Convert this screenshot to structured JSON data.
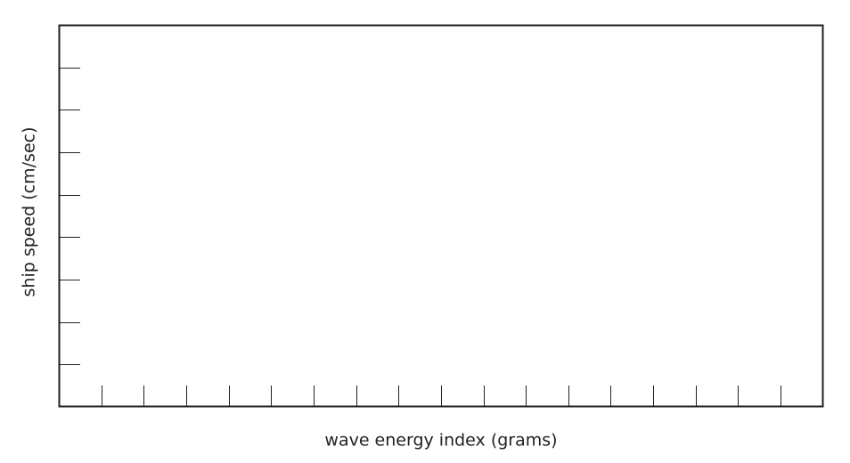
{
  "chart_data": {
    "type": "line",
    "x_label": "wave energy index (grams)",
    "y_label": "ship speed (cm/sec)",
    "series": []
  }
}
